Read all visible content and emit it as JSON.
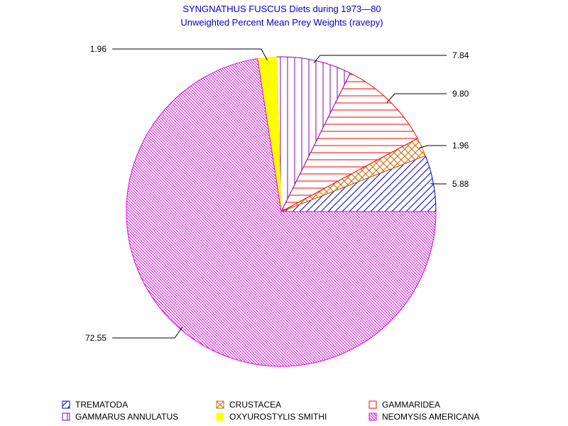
{
  "chart_data": {
    "type": "pie",
    "title": "SYNGNATHUS FUSCUS Diets during 1973—80",
    "subtitle": "Unweighted Percent Mean Prey Weights (ravepy)",
    "slices": [
      {
        "name": "TREMATODA",
        "value": 5.88,
        "label": "5.88",
        "color": "#0000cc",
        "pattern": "diagonal-forward"
      },
      {
        "name": "CRUSTACEA",
        "value": 1.96,
        "label": "1.96",
        "color": "#cc6600",
        "pattern": "crosshatch"
      },
      {
        "name": "GAMMARIDEA",
        "value": 9.8,
        "label": "9.80",
        "color": "#ff0000",
        "pattern": "horizontal"
      },
      {
        "name": "GAMMARUS ANNULATUS",
        "value": 7.84,
        "label": "7.84",
        "color": "#8800aa",
        "pattern": "vertical"
      },
      {
        "name": "OXYUROSTYLIS SMITHI",
        "value": 1.96,
        "label": "1.96",
        "color": "#ffff00",
        "pattern": "solid"
      },
      {
        "name": "NEOMYSIS AMERICANA",
        "value": 72.55,
        "label": "72.55",
        "color": "#dd00dd",
        "pattern": "diagonal-back-fine"
      }
    ],
    "start_angle_deg": 0,
    "direction": "counterclockwise",
    "legend_position": "bottom"
  }
}
